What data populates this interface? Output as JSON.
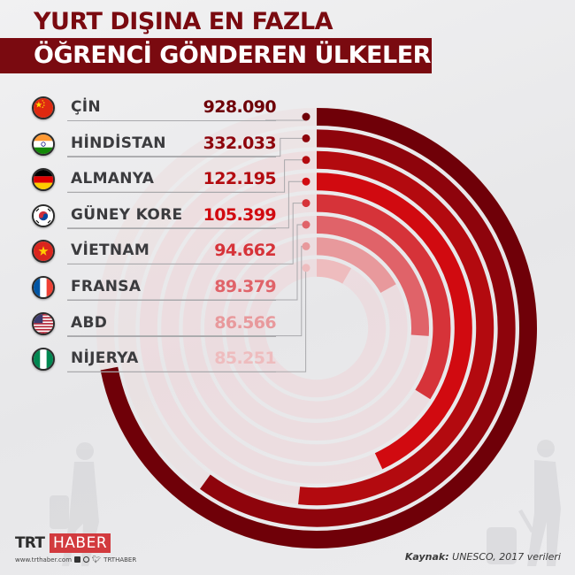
{
  "title": {
    "line1": "YURT DIŞINA EN FAZLA",
    "line2": "ÖĞRENCİ GÖNDEREN ÜLKELER"
  },
  "colors": {
    "title_bar": "#7a0a10",
    "title_text_dark": "#7a0a10",
    "label_text": "#3b3b3e",
    "track": "#efd6d8",
    "background": "#ebebed"
  },
  "rows": [
    {
      "country": "ÇİN",
      "value": "928.090",
      "flag_icon": "china-flag-icon",
      "color": "#6f0008"
    },
    {
      "country": "HİNDİSTAN",
      "value": "332.033",
      "flag_icon": "india-flag-icon",
      "color": "#8e040c"
    },
    {
      "country": "ALMANYA",
      "value": "122.195",
      "flag_icon": "germany-flag-icon",
      "color": "#b30a0f"
    },
    {
      "country": "GÜNEY KORE",
      "value": "105.399",
      "flag_icon": "south-korea-flag-icon",
      "color": "#d10a10"
    },
    {
      "country": "VİETNAM",
      "value": "94.662",
      "flag_icon": "vietnam-flag-icon",
      "color": "#d63339"
    },
    {
      "country": "FRANSA",
      "value": "89.379",
      "flag_icon": "france-flag-icon",
      "color": "#e06369"
    },
    {
      "country": "ABD",
      "value": "86.566",
      "flag_icon": "usa-flag-icon",
      "color": "#e8999c"
    },
    {
      "country": "NİJERYA",
      "value": "85.251",
      "flag_icon": "nigeria-flag-icon",
      "color": "#eebcbe"
    }
  ],
  "chart_data": {
    "type": "radial-bar",
    "title": "YURT DIŞINA EN FAZLA ÖĞRENCİ GÖNDEREN ÜLKELER",
    "categories": [
      "ÇİN",
      "HİNDİSTAN",
      "ALMANYA",
      "GÜNEY KORE",
      "VİETNAM",
      "FRANSA",
      "ABD",
      "NİJERYA"
    ],
    "values": [
      928090,
      332033,
      122195,
      105399,
      94662,
      89379,
      86566,
      85251
    ],
    "value_labels": [
      "928.090",
      "332.033",
      "122.195",
      "105.399",
      "94.662",
      "89.379",
      "86.566",
      "85.251"
    ],
    "arc_degrees_visual": [
      259,
      216,
      186,
      155,
      122,
      94,
      61,
      30
    ],
    "center": [
      358,
      371
    ],
    "outer_radius": 249,
    "ring_pitch": 24.4,
    "ring_width": 20,
    "start_angle": "top (12 o'clock), clockwise",
    "source": "UNESCO, 2017 verileri"
  },
  "footer": {
    "logo_trt": "TRT",
    "logo_haber": "HABER",
    "website": "www.trthaber.com",
    "social_handle": "TRTHABER",
    "source_label": "Kaynak:",
    "source_text": "UNESCO, 2017 verileri"
  }
}
